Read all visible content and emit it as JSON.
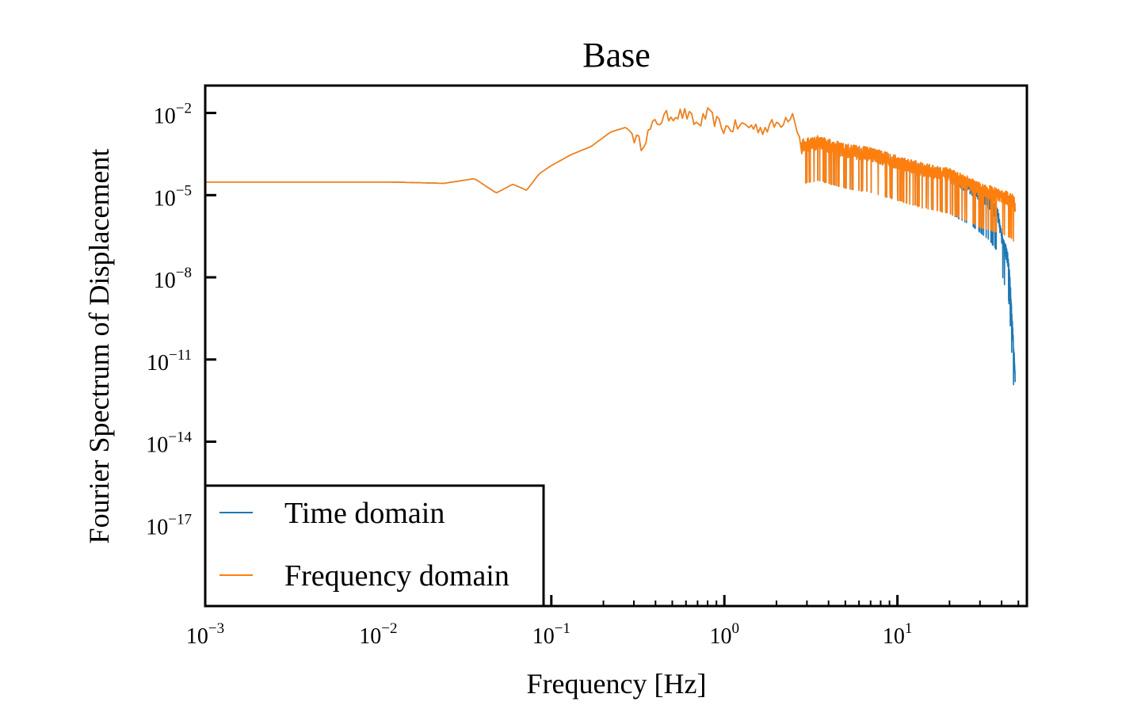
{
  "chart_data": {
    "type": "line",
    "title": "Base",
    "xlabel": "Frequency [Hz]",
    "ylabel": "Fourier Spectrum of Displacement",
    "x_scale": "log",
    "y_scale": "log",
    "xlim": [
      0.001,
      56
    ],
    "ylim": [
      1e-20,
      0.1
    ],
    "grid": false,
    "legend_placement": "lower-left",
    "x_ticks": [
      {
        "base": "10",
        "exp": "−3",
        "value": 0.001
      },
      {
        "base": "10",
        "exp": "−2",
        "value": 0.01
      },
      {
        "base": "10",
        "exp": "−1",
        "value": 0.1
      },
      {
        "base": "10",
        "exp": "0",
        "value": 1
      },
      {
        "base": "10",
        "exp": "1",
        "value": 10
      }
    ],
    "y_ticks": [
      {
        "base": "10",
        "exp": "−2",
        "value": 0.01
      },
      {
        "base": "10",
        "exp": "−5",
        "value": 1e-05
      },
      {
        "base": "10",
        "exp": "−8",
        "value": 1e-08
      },
      {
        "base": "10",
        "exp": "−11",
        "value": 1e-11
      },
      {
        "base": "10",
        "exp": "−14",
        "value": 1e-14
      },
      {
        "base": "10",
        "exp": "−17",
        "value": 1e-17
      }
    ],
    "series": [
      {
        "name": "Time domain",
        "color": "#1f77b4",
        "x": [
          0.001,
          0.012,
          0.024,
          0.036,
          0.048,
          0.06,
          0.072,
          0.085,
          0.1,
          0.13,
          0.17,
          0.22,
          0.27,
          0.33,
          0.4,
          0.5,
          0.6,
          0.7,
          0.8,
          1.0,
          1.3,
          1.7,
          2.1,
          2.5,
          2.8,
          3.5,
          5,
          7,
          10,
          14,
          20,
          26,
          30,
          34,
          38,
          40,
          42,
          44,
          45,
          46,
          47,
          48
        ],
        "y": [
          3e-05,
          3e-05,
          2.7e-05,
          4e-05,
          1.2e-05,
          2.5e-05,
          1.5e-05,
          6e-05,
          0.00012,
          0.0003,
          0.0006,
          0.002,
          0.003,
          0.0008,
          0.005,
          0.01,
          0.01,
          0.004,
          0.01,
          0.003,
          0.004,
          0.003,
          0.005,
          0.012,
          0.0006,
          0.0008,
          0.0004,
          0.0003,
          0.00015,
          8e-05,
          5e-05,
          2e-05,
          1e-05,
          5e-06,
          2e-06,
          3e-07,
          1e-07,
          3e-08,
          3e-09,
          2e-10,
          2e-11,
          2e-12
        ]
      },
      {
        "name": "Frequency domain",
        "color": "#ff7f0e",
        "x": [
          0.001,
          0.012,
          0.024,
          0.036,
          0.048,
          0.06,
          0.072,
          0.085,
          0.1,
          0.13,
          0.17,
          0.22,
          0.27,
          0.33,
          0.4,
          0.5,
          0.6,
          0.7,
          0.8,
          1.0,
          1.3,
          1.7,
          2.1,
          2.5,
          2.8,
          3.5,
          5,
          7,
          10,
          14,
          20,
          26,
          30,
          34,
          38,
          42,
          46,
          48
        ],
        "y": [
          3e-05,
          3e-05,
          2.7e-05,
          4e-05,
          1.2e-05,
          2.5e-05,
          1.5e-05,
          6e-05,
          0.00012,
          0.0003,
          0.0006,
          0.002,
          0.003,
          0.0008,
          0.005,
          0.01,
          0.01,
          0.004,
          0.01,
          0.003,
          0.004,
          0.003,
          0.005,
          0.012,
          0.0006,
          0.0008,
          0.0004,
          0.0003,
          0.00015,
          8e-05,
          5e-05,
          2.5e-05,
          1.5e-05,
          1.2e-05,
          1e-05,
          8e-06,
          6e-06,
          4e-06
        ]
      }
    ]
  }
}
